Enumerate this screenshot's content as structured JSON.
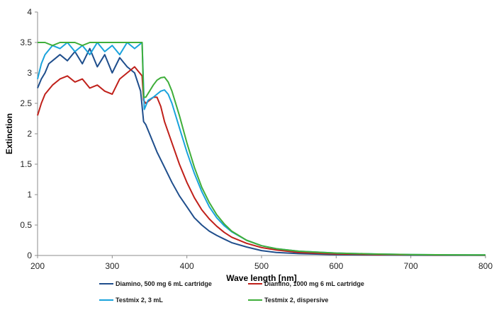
{
  "chart_data": {
    "type": "line",
    "title": "",
    "xlabel": "Wave length [nm]",
    "ylabel": "Extinction",
    "xlim": [
      200,
      800
    ],
    "ylim": [
      0,
      4
    ],
    "xticks": [
      200,
      300,
      400,
      500,
      600,
      700,
      800
    ],
    "yticks": [
      0,
      0.5,
      1,
      1.5,
      2,
      2.5,
      3,
      3.5,
      4
    ],
    "xtick_labels": [
      "200",
      "300",
      "400",
      "500",
      "600",
      "700",
      "800"
    ],
    "ytick_labels": [
      "0",
      "0.5",
      "1",
      "1.5",
      "2",
      "2.5",
      "3",
      "3.5",
      "4"
    ],
    "grid": false,
    "legend_position": "bottom",
    "series": [
      {
        "name": "Diamino, 500 mg 6 mL cartridge",
        "color": "#1f4e8c",
        "x": [
          200,
          205,
          210,
          215,
          220,
          230,
          240,
          250,
          260,
          270,
          280,
          290,
          300,
          310,
          320,
          330,
          338,
          342,
          345,
          350,
          360,
          370,
          380,
          390,
          400,
          410,
          420,
          430,
          440,
          450,
          460,
          480,
          500,
          520,
          550,
          600,
          650,
          700,
          750,
          800
        ],
        "y": [
          2.75,
          2.9,
          3.0,
          3.15,
          3.2,
          3.3,
          3.2,
          3.35,
          3.15,
          3.4,
          3.1,
          3.3,
          3.0,
          3.25,
          3.1,
          3.0,
          2.7,
          2.2,
          2.15,
          2.0,
          1.7,
          1.45,
          1.2,
          0.98,
          0.8,
          0.62,
          0.5,
          0.4,
          0.33,
          0.27,
          0.21,
          0.14,
          0.08,
          0.05,
          0.03,
          0.015,
          0.008,
          0.005,
          0.003,
          0.002
        ]
      },
      {
        "name": "Diamino, 1000 mg 6 mL cartridge",
        "color": "#c0201a",
        "x": [
          200,
          205,
          210,
          220,
          230,
          240,
          250,
          260,
          270,
          280,
          290,
          300,
          310,
          320,
          330,
          340,
          342,
          345,
          350,
          355,
          360,
          365,
          370,
          380,
          390,
          400,
          410,
          420,
          430,
          440,
          450,
          460,
          480,
          500,
          520,
          550,
          600,
          650,
          700,
          750,
          800
        ],
        "y": [
          2.3,
          2.5,
          2.65,
          2.8,
          2.9,
          2.95,
          2.85,
          2.9,
          2.75,
          2.8,
          2.7,
          2.65,
          2.9,
          3.0,
          3.1,
          2.95,
          2.55,
          2.5,
          2.55,
          2.6,
          2.6,
          2.45,
          2.2,
          1.85,
          1.5,
          1.2,
          0.95,
          0.75,
          0.6,
          0.48,
          0.38,
          0.3,
          0.2,
          0.13,
          0.09,
          0.05,
          0.025,
          0.015,
          0.01,
          0.007,
          0.005
        ]
      },
      {
        "name": "Testmix 2, 3 mL",
        "color": "#1aa3dc",
        "x": [
          200,
          205,
          210,
          220,
          230,
          240,
          250,
          260,
          270,
          280,
          290,
          300,
          310,
          320,
          330,
          340,
          343,
          348,
          355,
          360,
          365,
          370,
          375,
          380,
          390,
          400,
          410,
          420,
          430,
          440,
          450,
          460,
          480,
          500,
          520,
          550,
          600,
          650,
          700,
          750,
          800
        ],
        "y": [
          2.9,
          3.15,
          3.3,
          3.45,
          3.4,
          3.5,
          3.35,
          3.45,
          3.3,
          3.5,
          3.35,
          3.45,
          3.3,
          3.5,
          3.4,
          3.5,
          2.4,
          2.55,
          2.6,
          2.65,
          2.7,
          2.72,
          2.65,
          2.5,
          2.1,
          1.7,
          1.35,
          1.05,
          0.8,
          0.62,
          0.49,
          0.39,
          0.25,
          0.16,
          0.11,
          0.07,
          0.04,
          0.025,
          0.015,
          0.01,
          0.008
        ]
      },
      {
        "name": "Testmix 2, dispersive",
        "color": "#3fae3a",
        "x": [
          200,
          210,
          220,
          230,
          240,
          250,
          260,
          270,
          280,
          290,
          300,
          310,
          320,
          330,
          340,
          342,
          345,
          350,
          355,
          360,
          365,
          370,
          375,
          380,
          390,
          400,
          410,
          420,
          430,
          440,
          450,
          460,
          480,
          500,
          520,
          550,
          600,
          650,
          700,
          750,
          800
        ],
        "y": [
          3.5,
          3.5,
          3.45,
          3.5,
          3.5,
          3.5,
          3.45,
          3.5,
          3.5,
          3.5,
          3.5,
          3.5,
          3.5,
          3.5,
          3.5,
          2.6,
          2.6,
          2.7,
          2.8,
          2.88,
          2.92,
          2.93,
          2.85,
          2.7,
          2.3,
          1.85,
          1.45,
          1.12,
          0.87,
          0.67,
          0.52,
          0.4,
          0.25,
          0.16,
          0.11,
          0.07,
          0.04,
          0.025,
          0.015,
          0.01,
          0.008
        ]
      }
    ]
  }
}
